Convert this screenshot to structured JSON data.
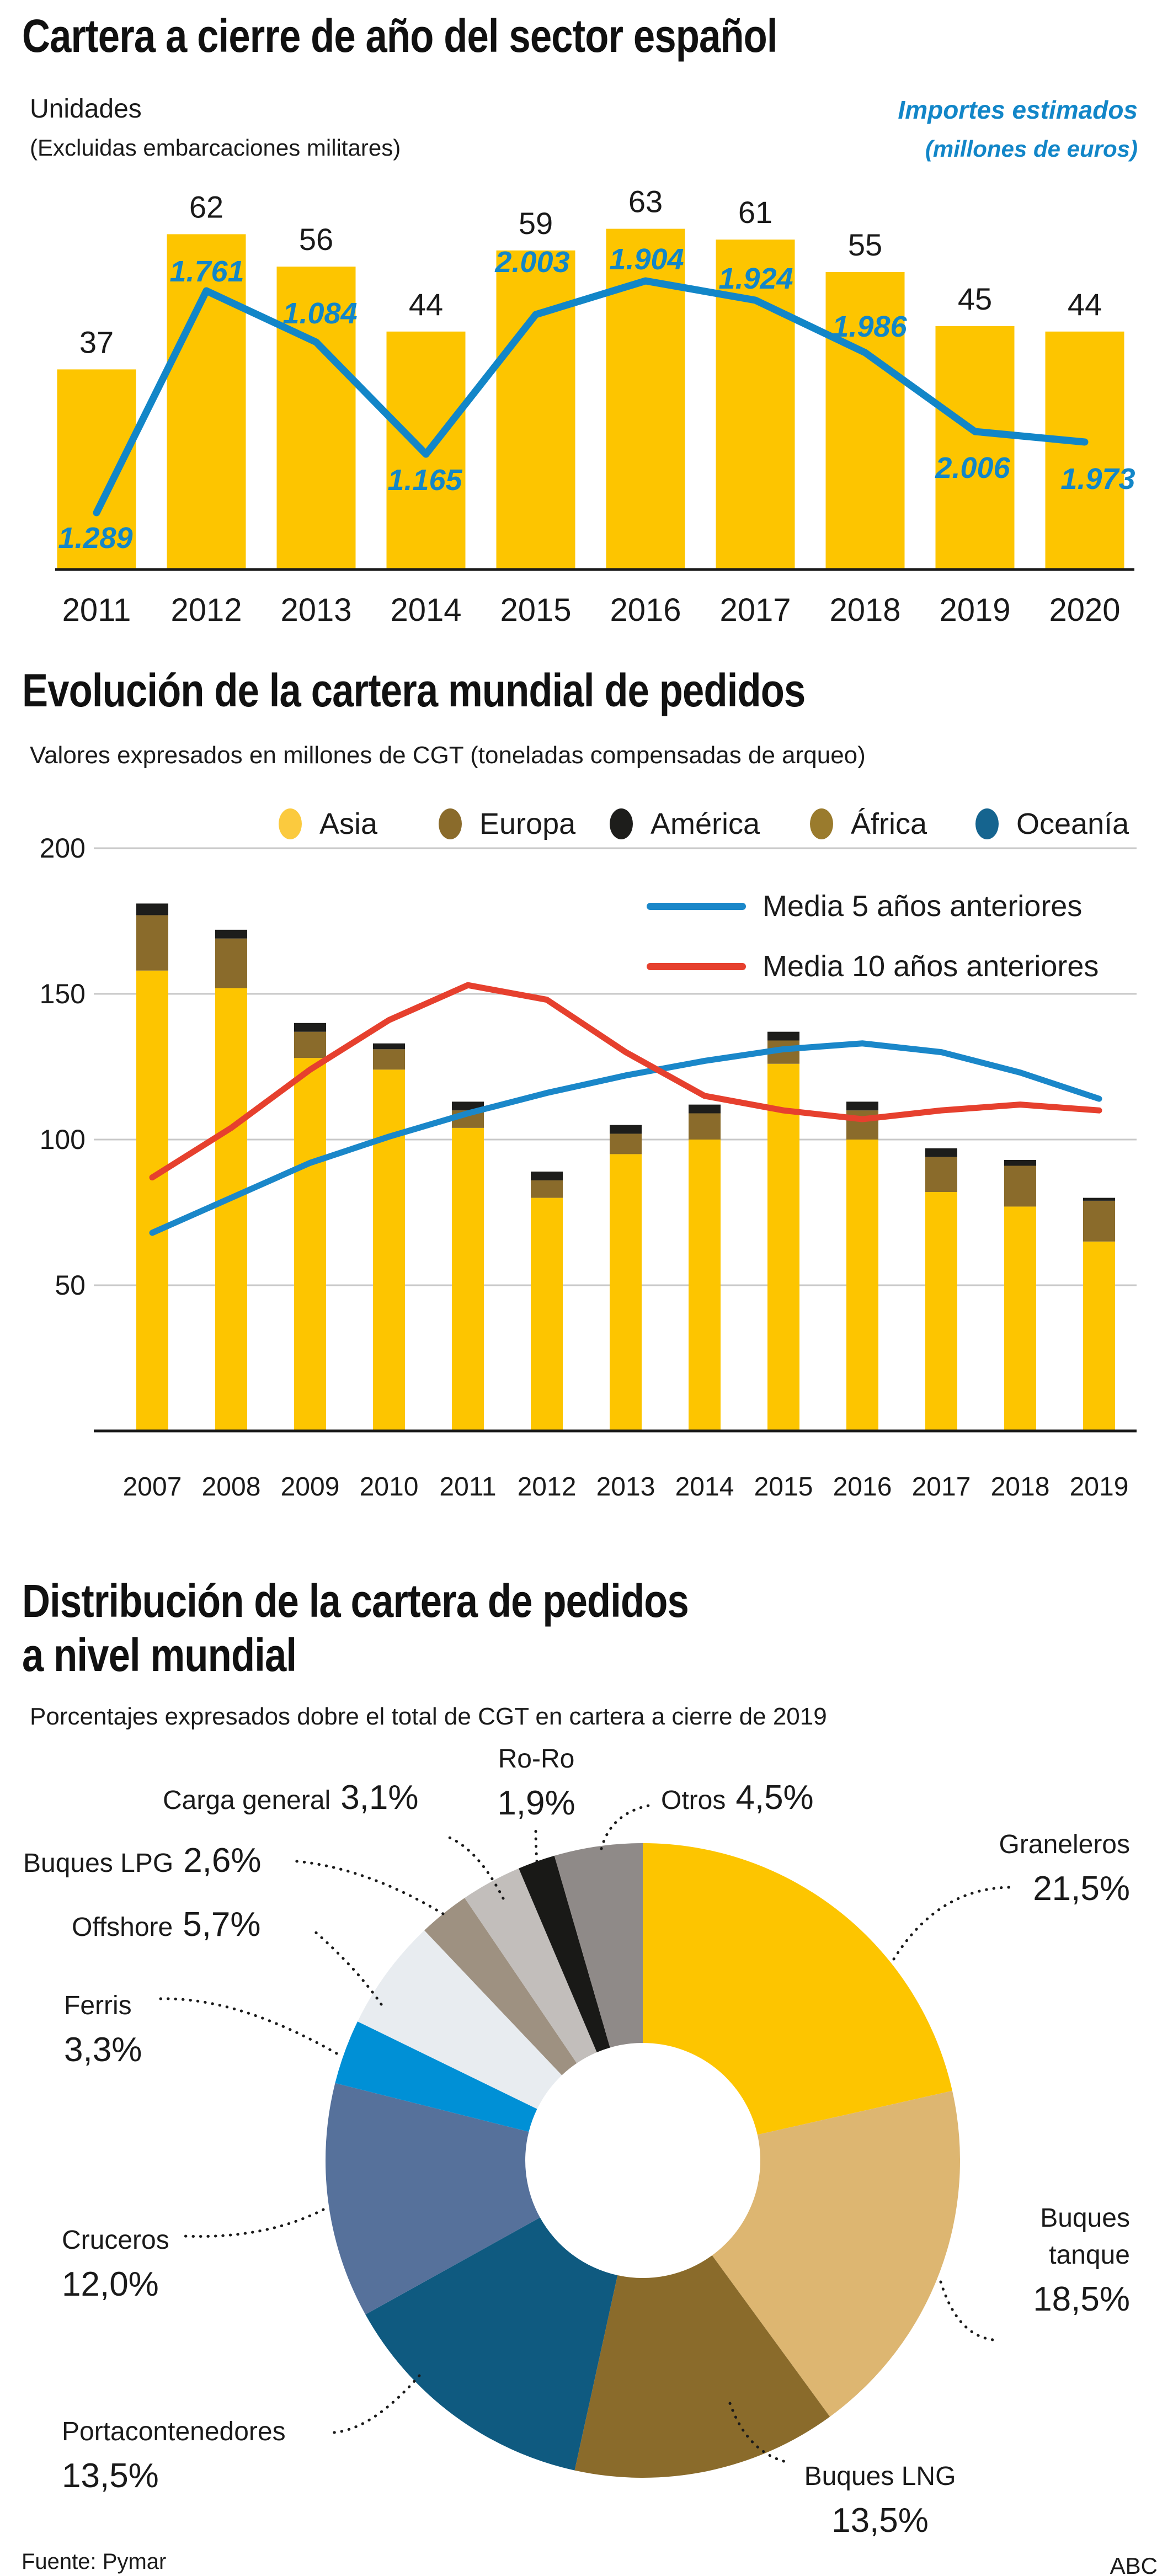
{
  "page": {
    "source": "Fuente: Pymar",
    "brand": "ABC"
  },
  "chart_data": [
    {
      "type": "bar",
      "title": "Cartera a cierre de año del sector español",
      "units_label": "Unidades",
      "units_note": "(Excluidas embarcaciones militares)",
      "line_label": "Importes estimados",
      "line_note": "(millones de euros)",
      "categories": [
        "2011",
        "2012",
        "2013",
        "2014",
        "2015",
        "2016",
        "2017",
        "2018",
        "2019",
        "2020"
      ],
      "series": [
        {
          "name": "Unidades",
          "type": "bar",
          "color": "#FDC500",
          "values": [
            37,
            62,
            56,
            44,
            59,
            63,
            61,
            55,
            45,
            44
          ]
        },
        {
          "name": "Importes estimados (millones de euros)",
          "type": "line",
          "color": "#1286C8",
          "values": [
            1289,
            1761,
            1084,
            1165,
            2003,
            1904,
            1924,
            1986,
            2006,
            1973
          ],
          "value_labels": [
            "1.289",
            "1.761",
            "1.084",
            "1.165",
            "2.003",
            "1.904",
            "1.924",
            "1.986",
            "2.006",
            "1.973"
          ]
        }
      ]
    },
    {
      "type": "stacked-bar-with-lines",
      "title": "Evolución de la cartera mundial de pedidos",
      "subtitle": "Valores expresados en millones de CGT (toneladas compensadas de arqueo)",
      "categories": [
        "2007",
        "2008",
        "2009",
        "2010",
        "2011",
        "2012",
        "2013",
        "2014",
        "2015",
        "2016",
        "2017",
        "2018",
        "2019"
      ],
      "y_ticks": [
        200,
        150,
        100,
        50
      ],
      "ylim": [
        0,
        200
      ],
      "legend": [
        {
          "label": "Asia",
          "color": "#FBCA3E"
        },
        {
          "label": "Europa",
          "color": "#8A6B2B"
        },
        {
          "label": "América",
          "color": "#1D1D1B"
        },
        {
          "label": "África",
          "color": "#9A7B2D"
        },
        {
          "label": "Oceanía",
          "color": "#15648F"
        }
      ],
      "series": [
        {
          "name": "Asia",
          "color": "#FDC500",
          "values": [
            158,
            152,
            128,
            124,
            104,
            80,
            95,
            100,
            126,
            100,
            82,
            77,
            65
          ]
        },
        {
          "name": "Europa",
          "color": "#8A6B2B",
          "values": [
            19,
            17,
            9,
            7,
            6,
            6,
            7,
            9,
            8,
            10,
            12,
            14,
            14
          ]
        },
        {
          "name": "América",
          "color": "#1D1D1B",
          "values": [
            4,
            3,
            3,
            2,
            3,
            3,
            3,
            3,
            3,
            3,
            3,
            2,
            1
          ]
        }
      ],
      "lines": [
        {
          "name": "Media 5 años anteriores",
          "color": "#1A87C9",
          "values": [
            68,
            80,
            92,
            101,
            109,
            116,
            122,
            127,
            131,
            133,
            130,
            123,
            114
          ]
        },
        {
          "name": "Media 10 años anteriores",
          "color": "#E6402E",
          "values": [
            87,
            104,
            124,
            141,
            153,
            148,
            130,
            115,
            110,
            107,
            110,
            112,
            110
          ]
        }
      ]
    },
    {
      "type": "donut",
      "title": "Distribución de la cartera de pedidos",
      "title_line2": "a nivel mundial",
      "subtitle": "Porcentajes expresados dobre el total de CGT en cartera a cierre de 2019",
      "slices": [
        {
          "label": "Graneleros",
          "value": 21.5,
          "value_label": "21,5%",
          "color": "#FDC500"
        },
        {
          "label": "Buques tanque",
          "value": 18.5,
          "value_label": "18,5%",
          "color": "#DDB671"
        },
        {
          "label": "Buques LNG",
          "value": 13.5,
          "value_label": "13,5%",
          "color": "#8A6B2B"
        },
        {
          "label": "Portacontenedores",
          "value": 13.5,
          "value_label": "13,5%",
          "color": "#0F5A80"
        },
        {
          "label": "Cruceros",
          "value": 12.0,
          "value_label": "12,0%",
          "color": "#56719B"
        },
        {
          "label": "Ferris",
          "value": 3.3,
          "value_label": "3,3%",
          "color": "#0090D6"
        },
        {
          "label": "Offshore",
          "value": 5.7,
          "value_label": "5,7%",
          "color": "#E8ECF0"
        },
        {
          "label": "Buques LPG",
          "value": 2.6,
          "value_label": "2,6%",
          "color": "#9E9181"
        },
        {
          "label": "Carga general",
          "value": 3.1,
          "value_label": "3,1%",
          "color": "#C2BEBB"
        },
        {
          "label": "Ro-Ro",
          "value": 1.9,
          "value_label": "1,9%",
          "color": "#191917"
        },
        {
          "label": "Otros",
          "value": 4.5,
          "value_label": "4,5%",
          "color": "#8F8A88"
        }
      ]
    }
  ]
}
